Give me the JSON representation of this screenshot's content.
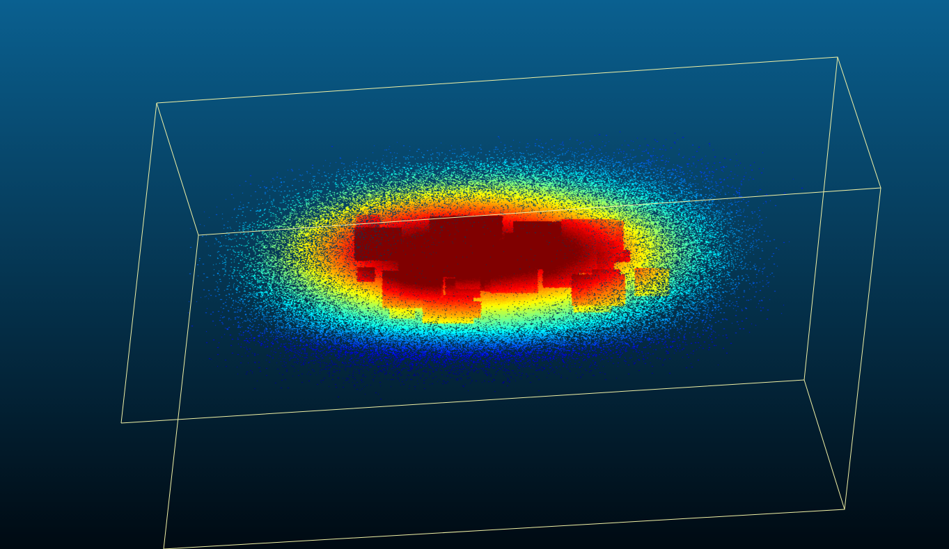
{
  "viewer": {
    "background": {
      "top_color": "#0a6090",
      "bottom_color": "#000a12"
    },
    "bounding_box": {
      "color": "#f2f2a6"
    },
    "colormap": {
      "name": "jet",
      "stops": [
        "#00008f",
        "#0000ff",
        "#0080ff",
        "#00ffff",
        "#80ff80",
        "#ffff00",
        "#ff8000",
        "#ff0000",
        "#800000"
      ]
    }
  }
}
